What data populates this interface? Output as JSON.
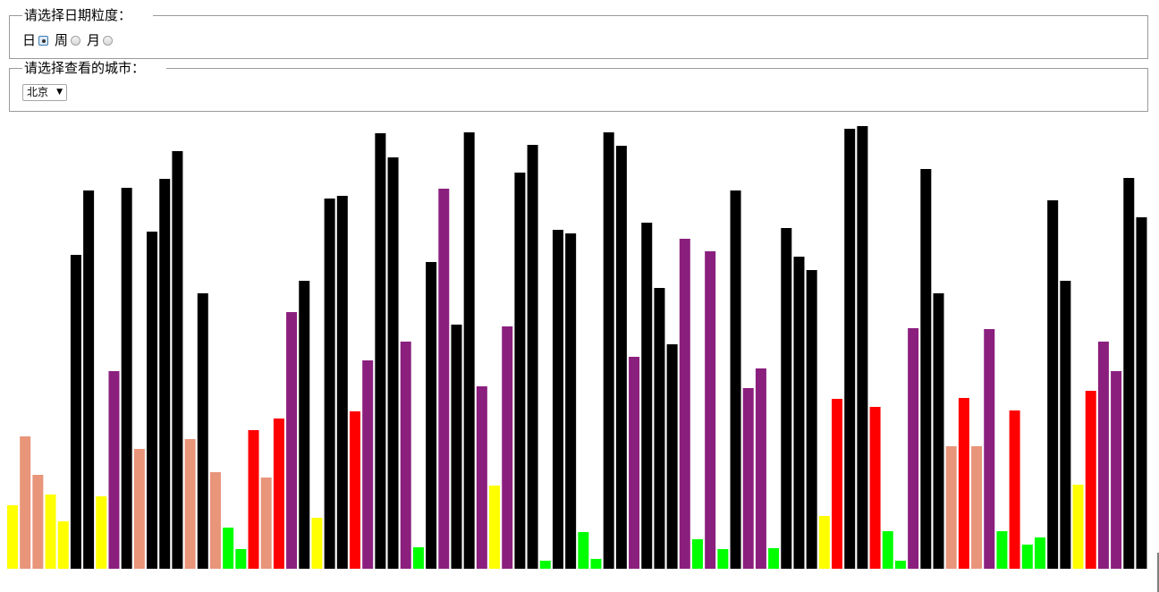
{
  "granularity": {
    "legend": "请选择日期粒度：",
    "options": [
      {
        "label": "日",
        "checked": true
      },
      {
        "label": "周",
        "checked": false
      },
      {
        "label": "月",
        "checked": false
      }
    ]
  },
  "city": {
    "legend": "请选择查看的城市：",
    "selected": "北京"
  },
  "chart_data": {
    "type": "bar",
    "title": "",
    "xlabel": "",
    "ylabel": "",
    "ylim": [
      0,
      500
    ],
    "grid": false,
    "palette": {
      "black": "#000000",
      "purple": "#8b1f7e",
      "red": "#ff0000",
      "salmon": "#e8957a",
      "yellow": "#ffff00",
      "green": "#00ff00"
    },
    "values": [
      71,
      148,
      105,
      83,
      53,
      351,
      423,
      81,
      221,
      426,
      134,
      377,
      436,
      467,
      145,
      308,
      108,
      46,
      22,
      155,
      102,
      168,
      287,
      322,
      57,
      414,
      417,
      176,
      233,
      487,
      460,
      254,
      24,
      343,
      425,
      273,
      488,
      204,
      93,
      271,
      443,
      474,
      9,
      379,
      375,
      41,
      11,
      488,
      473,
      237,
      387,
      314,
      251,
      369,
      33,
      355,
      22,
      423,
      202,
      224,
      23,
      381,
      349,
      334,
      59,
      190,
      492,
      495,
      181,
      42,
      9,
      269,
      447,
      308,
      137,
      191,
      137,
      268,
      42,
      177,
      27,
      35,
      412,
      322,
      94,
      199,
      254,
      221,
      437,
      393
    ],
    "colors": [
      "yellow",
      "salmon",
      "salmon",
      "yellow",
      "yellow",
      "black",
      "black",
      "yellow",
      "purple",
      "black",
      "salmon",
      "black",
      "black",
      "black",
      "salmon",
      "black",
      "salmon",
      "green",
      "green",
      "red",
      "salmon",
      "red",
      "purple",
      "black",
      "yellow",
      "black",
      "black",
      "red",
      "purple",
      "black",
      "black",
      "purple",
      "green",
      "black",
      "purple",
      "black",
      "black",
      "purple",
      "yellow",
      "purple",
      "black",
      "black",
      "green",
      "black",
      "black",
      "green",
      "green",
      "black",
      "black",
      "purple",
      "black",
      "black",
      "black",
      "purple",
      "green",
      "purple",
      "green",
      "black",
      "purple",
      "purple",
      "green",
      "black",
      "black",
      "black",
      "yellow",
      "red",
      "black",
      "black",
      "red",
      "green",
      "green",
      "purple",
      "black",
      "black",
      "salmon",
      "red",
      "salmon",
      "purple",
      "green",
      "red",
      "green",
      "green",
      "black",
      "black",
      "yellow",
      "red",
      "purple",
      "purple",
      "black",
      "black"
    ]
  }
}
